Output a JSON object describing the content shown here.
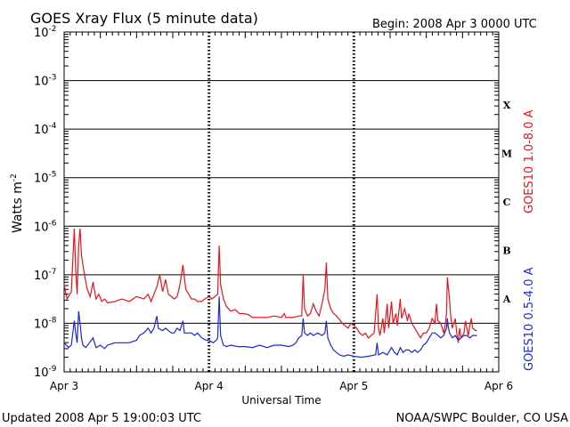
{
  "chart_data": {
    "type": "line",
    "title": "GOES Xray Flux (5 minute data)",
    "begin_label": "Begin:  2008 Apr 3 0000 UTC",
    "xlabel": "Universal Time",
    "ylabel": "Watts m",
    "ylabel_sup": "-2",
    "x_ticks": [
      "Apr 3",
      "Apr 4",
      "Apr 5",
      "Apr 6"
    ],
    "x_range_days": [
      0,
      3
    ],
    "y_scale": "log",
    "y_range_exp": [
      -9,
      -2
    ],
    "y_ticks": [
      {
        "base": "10",
        "exp": "-9"
      },
      {
        "base": "10",
        "exp": "-8"
      },
      {
        "base": "10",
        "exp": "-7"
      },
      {
        "base": "10",
        "exp": "-6"
      },
      {
        "base": "10",
        "exp": "-5"
      },
      {
        "base": "10",
        "exp": "-4"
      },
      {
        "base": "10",
        "exp": "-3"
      },
      {
        "base": "10",
        "exp": "-2"
      }
    ],
    "flare_classes": [
      {
        "label": "A",
        "exp": -7.5
      },
      {
        "label": "B",
        "exp": -6.5
      },
      {
        "label": "C",
        "exp": -5.5
      },
      {
        "label": "M",
        "exp": -4.5
      },
      {
        "label": "X",
        "exp": -3.5
      }
    ],
    "grid": "horizontal at decades",
    "series": [
      {
        "name": "GOES10 1.0-8.0 A",
        "color": "#e8141c",
        "points": [
          [
            0.0,
            -7.2
          ],
          [
            0.02,
            -7.5
          ],
          [
            0.05,
            -7.35
          ],
          [
            0.07,
            -6.05
          ],
          [
            0.08,
            -6.9
          ],
          [
            0.09,
            -7.4
          ],
          [
            0.1,
            -6.4
          ],
          [
            0.11,
            -6.05
          ],
          [
            0.12,
            -6.6
          ],
          [
            0.14,
            -7.0
          ],
          [
            0.16,
            -7.3
          ],
          [
            0.18,
            -7.45
          ],
          [
            0.2,
            -7.15
          ],
          [
            0.22,
            -7.5
          ],
          [
            0.24,
            -7.4
          ],
          [
            0.26,
            -7.55
          ],
          [
            0.28,
            -7.5
          ],
          [
            0.3,
            -7.58
          ],
          [
            0.35,
            -7.55
          ],
          [
            0.4,
            -7.5
          ],
          [
            0.45,
            -7.55
          ],
          [
            0.5,
            -7.45
          ],
          [
            0.55,
            -7.5
          ],
          [
            0.58,
            -7.4
          ],
          [
            0.6,
            -7.55
          ],
          [
            0.62,
            -7.4
          ],
          [
            0.64,
            -7.25
          ],
          [
            0.66,
            -7.0
          ],
          [
            0.68,
            -7.35
          ],
          [
            0.7,
            -7.1
          ],
          [
            0.72,
            -7.4
          ],
          [
            0.74,
            -7.45
          ],
          [
            0.76,
            -7.5
          ],
          [
            0.78,
            -7.45
          ],
          [
            0.8,
            -7.2
          ],
          [
            0.82,
            -6.8
          ],
          [
            0.84,
            -7.3
          ],
          [
            0.86,
            -7.4
          ],
          [
            0.88,
            -7.5
          ],
          [
            0.9,
            -7.5
          ],
          [
            0.92,
            -7.55
          ],
          [
            0.95,
            -7.55
          ],
          [
            0.97,
            -7.5
          ],
          [
            1.0,
            -7.45
          ],
          [
            1.02,
            -7.5
          ],
          [
            1.04,
            -7.45
          ],
          [
            1.06,
            -7.4
          ],
          [
            1.07,
            -6.4
          ],
          [
            1.08,
            -7.2
          ],
          [
            1.1,
            -7.5
          ],
          [
            1.12,
            -7.65
          ],
          [
            1.15,
            -7.75
          ],
          [
            1.18,
            -7.72
          ],
          [
            1.21,
            -7.8
          ],
          [
            1.24,
            -7.8
          ],
          [
            1.27,
            -7.82
          ],
          [
            1.3,
            -7.88
          ],
          [
            1.35,
            -7.88
          ],
          [
            1.4,
            -7.88
          ],
          [
            1.45,
            -7.85
          ],
          [
            1.5,
            -7.88
          ],
          [
            1.52,
            -7.8
          ],
          [
            1.53,
            -7.88
          ],
          [
            1.58,
            -7.88
          ],
          [
            1.62,
            -7.85
          ],
          [
            1.64,
            -7.85
          ],
          [
            1.65,
            -7.0
          ],
          [
            1.66,
            -7.7
          ],
          [
            1.68,
            -7.85
          ],
          [
            1.7,
            -7.8
          ],
          [
            1.72,
            -7.6
          ],
          [
            1.74,
            -7.75
          ],
          [
            1.76,
            -7.85
          ],
          [
            1.78,
            -7.6
          ],
          [
            1.8,
            -7.3
          ],
          [
            1.81,
            -6.75
          ],
          [
            1.82,
            -7.5
          ],
          [
            1.84,
            -7.7
          ],
          [
            1.86,
            -7.8
          ],
          [
            1.88,
            -7.85
          ],
          [
            1.9,
            -7.92
          ],
          [
            1.92,
            -8.0
          ],
          [
            1.94,
            -8.05
          ],
          [
            1.96,
            -8.1
          ],
          [
            1.98,
            -8.0
          ],
          [
            2.0,
            -8.05
          ],
          [
            2.02,
            -8.1
          ],
          [
            2.04,
            -8.2
          ],
          [
            2.06,
            -8.25
          ],
          [
            2.08,
            -8.2
          ],
          [
            2.1,
            -8.3
          ],
          [
            2.12,
            -8.25
          ],
          [
            2.14,
            -8.2
          ],
          [
            2.16,
            -7.4
          ],
          [
            2.17,
            -8.1
          ],
          [
            2.18,
            -8.25
          ],
          [
            2.2,
            -7.9
          ],
          [
            2.21,
            -8.2
          ],
          [
            2.23,
            -7.6
          ],
          [
            2.24,
            -8.1
          ],
          [
            2.26,
            -7.55
          ],
          [
            2.27,
            -8.0
          ],
          [
            2.29,
            -7.8
          ],
          [
            2.3,
            -8.05
          ],
          [
            2.32,
            -7.5
          ],
          [
            2.33,
            -7.9
          ],
          [
            2.35,
            -7.7
          ],
          [
            2.37,
            -7.95
          ],
          [
            2.38,
            -7.8
          ],
          [
            2.4,
            -8.0
          ],
          [
            2.42,
            -8.1
          ],
          [
            2.44,
            -8.2
          ],
          [
            2.46,
            -8.3
          ],
          [
            2.48,
            -8.2
          ],
          [
            2.5,
            -8.2
          ],
          [
            2.52,
            -8.1
          ],
          [
            2.54,
            -7.9
          ],
          [
            2.56,
            -8.0
          ],
          [
            2.57,
            -7.6
          ],
          [
            2.58,
            -7.95
          ],
          [
            2.6,
            -8.0
          ],
          [
            2.61,
            -8.1
          ],
          [
            2.62,
            -8.2
          ],
          [
            2.63,
            -8.05
          ],
          [
            2.64,
            -7.8
          ],
          [
            2.645,
            -7.05
          ],
          [
            2.65,
            -7.2
          ],
          [
            2.66,
            -7.5
          ],
          [
            2.67,
            -7.9
          ],
          [
            2.68,
            -8.1
          ],
          [
            2.7,
            -7.9
          ],
          [
            2.71,
            -8.2
          ],
          [
            2.72,
            -8.4
          ],
          [
            2.73,
            -8.1
          ],
          [
            2.74,
            -8.3
          ],
          [
            2.76,
            -8.2
          ],
          [
            2.77,
            -7.95
          ],
          [
            2.78,
            -8.1
          ],
          [
            2.79,
            -8.25
          ],
          [
            2.8,
            -8.05
          ],
          [
            2.81,
            -7.9
          ],
          [
            2.82,
            -8.1
          ],
          [
            2.84,
            -8.15
          ],
          [
            2.85,
            -8.15
          ]
        ]
      },
      {
        "name": "GOES10 0.5-4.0 A",
        "color": "#1e28d2",
        "points": [
          [
            0.0,
            -8.4
          ],
          [
            0.03,
            -8.5
          ],
          [
            0.05,
            -8.45
          ],
          [
            0.07,
            -7.95
          ],
          [
            0.08,
            -8.2
          ],
          [
            0.09,
            -8.4
          ],
          [
            0.1,
            -7.75
          ],
          [
            0.11,
            -8.0
          ],
          [
            0.12,
            -8.3
          ],
          [
            0.13,
            -8.45
          ],
          [
            0.15,
            -8.5
          ],
          [
            0.2,
            -8.3
          ],
          [
            0.22,
            -8.5
          ],
          [
            0.25,
            -8.45
          ],
          [
            0.28,
            -8.52
          ],
          [
            0.3,
            -8.45
          ],
          [
            0.35,
            -8.4
          ],
          [
            0.4,
            -8.4
          ],
          [
            0.45,
            -8.4
          ],
          [
            0.5,
            -8.35
          ],
          [
            0.52,
            -8.25
          ],
          [
            0.55,
            -8.2
          ],
          [
            0.58,
            -8.1
          ],
          [
            0.6,
            -8.2
          ],
          [
            0.62,
            -8.1
          ],
          [
            0.64,
            -7.85
          ],
          [
            0.65,
            -8.1
          ],
          [
            0.68,
            -8.15
          ],
          [
            0.7,
            -8.1
          ],
          [
            0.72,
            -8.15
          ],
          [
            0.74,
            -8.2
          ],
          [
            0.76,
            -8.2
          ],
          [
            0.78,
            -8.1
          ],
          [
            0.8,
            -8.15
          ],
          [
            0.82,
            -7.95
          ],
          [
            0.83,
            -8.2
          ],
          [
            0.85,
            -8.2
          ],
          [
            0.88,
            -8.2
          ],
          [
            0.9,
            -8.25
          ],
          [
            0.92,
            -8.2
          ],
          [
            0.95,
            -8.3
          ],
          [
            0.98,
            -8.35
          ],
          [
            1.0,
            -8.35
          ],
          [
            1.03,
            -8.4
          ],
          [
            1.05,
            -8.35
          ],
          [
            1.06,
            -8.3
          ],
          [
            1.07,
            -7.45
          ],
          [
            1.08,
            -8.25
          ],
          [
            1.1,
            -8.45
          ],
          [
            1.12,
            -8.48
          ],
          [
            1.15,
            -8.45
          ],
          [
            1.2,
            -8.48
          ],
          [
            1.25,
            -8.48
          ],
          [
            1.3,
            -8.5
          ],
          [
            1.35,
            -8.45
          ],
          [
            1.4,
            -8.5
          ],
          [
            1.45,
            -8.45
          ],
          [
            1.5,
            -8.45
          ],
          [
            1.55,
            -8.48
          ],
          [
            1.58,
            -8.45
          ],
          [
            1.6,
            -8.4
          ],
          [
            1.62,
            -8.3
          ],
          [
            1.64,
            -8.25
          ],
          [
            1.65,
            -7.9
          ],
          [
            1.66,
            -8.2
          ],
          [
            1.68,
            -8.25
          ],
          [
            1.7,
            -8.2
          ],
          [
            1.72,
            -8.25
          ],
          [
            1.75,
            -8.2
          ],
          [
            1.78,
            -8.25
          ],
          [
            1.8,
            -8.2
          ],
          [
            1.81,
            -7.95
          ],
          [
            1.82,
            -8.3
          ],
          [
            1.84,
            -8.45
          ],
          [
            1.86,
            -8.55
          ],
          [
            1.88,
            -8.6
          ],
          [
            1.9,
            -8.65
          ],
          [
            1.93,
            -8.68
          ],
          [
            1.96,
            -8.65
          ],
          [
            2.0,
            -8.68
          ],
          [
            2.05,
            -8.7
          ],
          [
            2.1,
            -8.68
          ],
          [
            2.15,
            -8.65
          ],
          [
            2.16,
            -8.4
          ],
          [
            2.17,
            -8.65
          ],
          [
            2.2,
            -8.6
          ],
          [
            2.23,
            -8.65
          ],
          [
            2.26,
            -8.5
          ],
          [
            2.28,
            -8.6
          ],
          [
            2.3,
            -8.65
          ],
          [
            2.32,
            -8.5
          ],
          [
            2.34,
            -8.6
          ],
          [
            2.36,
            -8.55
          ],
          [
            2.38,
            -8.55
          ],
          [
            2.4,
            -8.6
          ],
          [
            2.42,
            -8.55
          ],
          [
            2.44,
            -8.6
          ],
          [
            2.46,
            -8.55
          ],
          [
            2.48,
            -8.45
          ],
          [
            2.5,
            -8.4
          ],
          [
            2.52,
            -8.3
          ],
          [
            2.54,
            -8.2
          ],
          [
            2.56,
            -8.2
          ],
          [
            2.58,
            -8.25
          ],
          [
            2.6,
            -8.3
          ],
          [
            2.62,
            -8.25
          ],
          [
            2.64,
            -8.1
          ],
          [
            2.645,
            -7.9
          ],
          [
            2.65,
            -8.05
          ],
          [
            2.66,
            -8.2
          ],
          [
            2.68,
            -8.3
          ],
          [
            2.7,
            -8.25
          ],
          [
            2.72,
            -8.35
          ],
          [
            2.74,
            -8.3
          ],
          [
            2.76,
            -8.25
          ],
          [
            2.78,
            -8.25
          ],
          [
            2.8,
            -8.3
          ],
          [
            2.82,
            -8.25
          ],
          [
            2.85,
            -8.25
          ]
        ]
      }
    ]
  },
  "footer": {
    "updated": "Updated 2008 Apr  5 19:00:03 UTC",
    "credit": "NOAA/SWPC Boulder, CO USA"
  }
}
